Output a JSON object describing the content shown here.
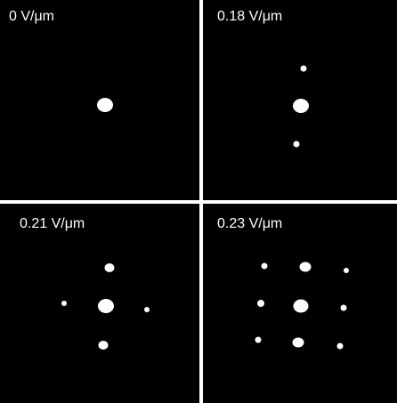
{
  "panels": [
    {
      "label": "0 V/μm"
    },
    {
      "label": "0.18 V/μm"
    },
    {
      "label": "0.21 V/μm"
    },
    {
      "label": "0.23 V/μm"
    }
  ]
}
